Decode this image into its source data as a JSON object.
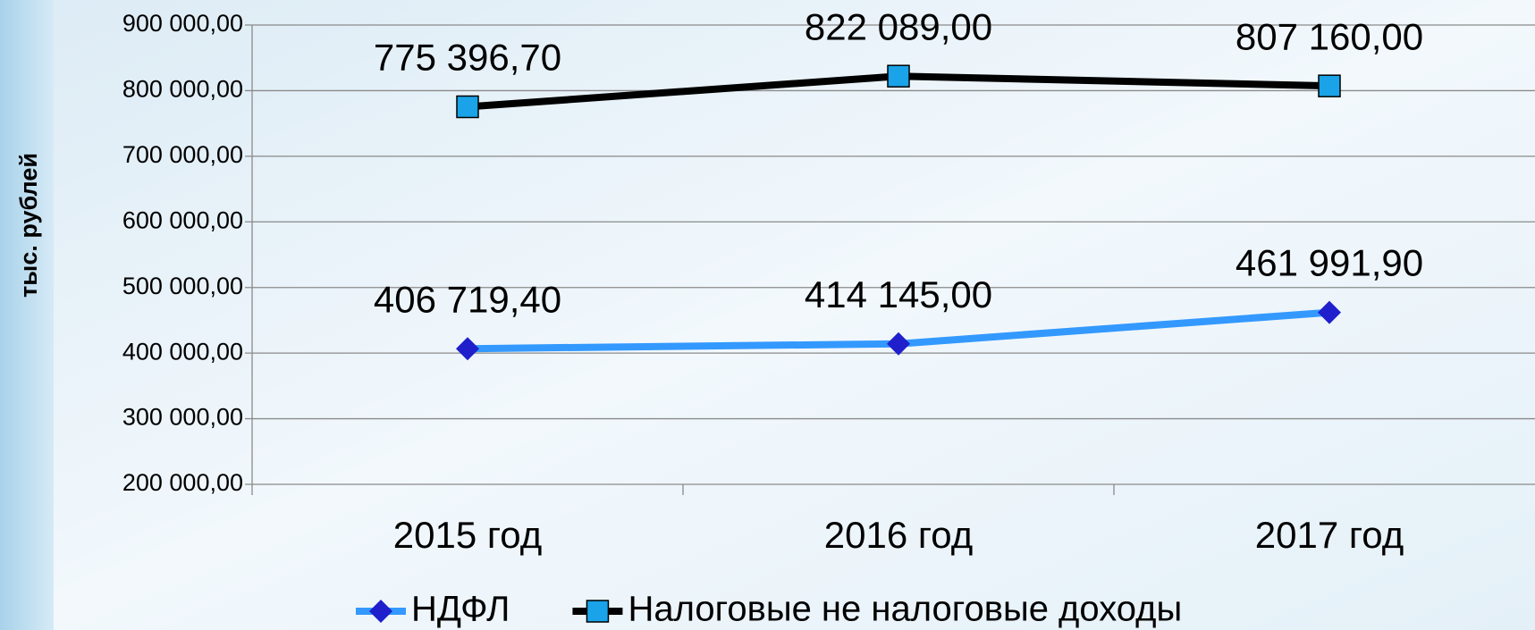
{
  "chart_data": {
    "type": "line",
    "y_label": "тыс. рублей",
    "categories": [
      "2015 год",
      "2016 год",
      "2017 год"
    ],
    "series": [
      {
        "name": "НДФЛ",
        "color": "#3399ff",
        "marker_color": "#1f1fcc",
        "marker": "diamond",
        "values": [
          406719.4,
          414145.0,
          461991.9
        ],
        "value_labels": [
          "406 719,40",
          "414 145,00",
          "461 991,90"
        ]
      },
      {
        "name": "Налоговые не налоговые доходы",
        "color": "#000000",
        "marker_color": "#1aa3e8",
        "marker": "square",
        "values": [
          775396.7,
          822089.0,
          807160.0
        ],
        "value_labels": [
          "775 396,70",
          "822 089,00",
          "807 160,00"
        ]
      }
    ],
    "ylim": [
      200000,
      900000
    ],
    "yticks": [
      {
        "value": 200000,
        "label": "200 000,00"
      },
      {
        "value": 300000,
        "label": "300 000,00"
      },
      {
        "value": 400000,
        "label": "400 000,00"
      },
      {
        "value": 500000,
        "label": "500 000,00"
      },
      {
        "value": 600000,
        "label": "600 000,00"
      },
      {
        "value": 700000,
        "label": "700 000,00"
      },
      {
        "value": 800000,
        "label": "800 000,00"
      },
      {
        "value": 900000,
        "label": "900 000,00"
      }
    ],
    "grid": true,
    "legend": "bottom"
  }
}
